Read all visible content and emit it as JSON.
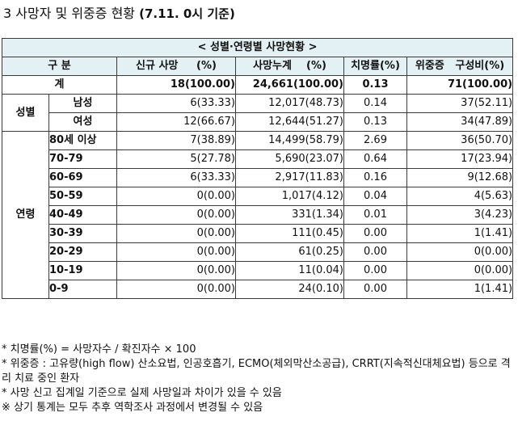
{
  "heading": {
    "number": "3",
    "title": "사망자 및 위중증 현황",
    "subtitle": "(7.11. 0시 기준)"
  },
  "table": {
    "caption": "< 성별·연령별 사망현황 >",
    "headers": {
      "category": "구 분",
      "new_deaths": "신규 사망",
      "new_deaths_unit": "(%)",
      "cumulative": "사망누계",
      "cumulative_unit": "(%)",
      "fatality": "치명률(%)",
      "critical": "위중증",
      "critical_unit": "구성비(%)"
    },
    "total": {
      "label": "계",
      "new_deaths": "18(100.00)",
      "cumulative": "24,661(100.00)",
      "fatality": "0.13",
      "critical": "71(100.00)"
    },
    "sex_group": "성별",
    "sex_rows": [
      {
        "label": "남성",
        "new_deaths": "6(33.33)",
        "cumulative": "12,017(48.73)",
        "fatality": "0.14",
        "critical": "37(52.11)"
      },
      {
        "label": "여성",
        "new_deaths": "12(66.67)",
        "cumulative": "12,644(51.27)",
        "fatality": "0.13",
        "critical": "34(47.89)"
      }
    ],
    "age_group": "연령",
    "age_rows": [
      {
        "label": "80세 이상",
        "new_deaths": "7(38.89)",
        "cumulative": "14,499(58.79)",
        "fatality": "2.69",
        "critical": "36(50.70)"
      },
      {
        "label": "70-79",
        "new_deaths": "5(27.78)",
        "cumulative": "5,690(23.07)",
        "fatality": "0.64",
        "critical": "17(23.94)"
      },
      {
        "label": "60-69",
        "new_deaths": "6(33.33)",
        "cumulative": "2,917(11.83)",
        "fatality": "0.16",
        "critical": "9(12.68)"
      },
      {
        "label": "50-59",
        "new_deaths": "0(0.00)",
        "cumulative": "1,017(4.12)",
        "fatality": "0.04",
        "critical": "4(5.63)"
      },
      {
        "label": "40-49",
        "new_deaths": "0(0.00)",
        "cumulative": "331(1.34)",
        "fatality": "0.01",
        "critical": "3(4.23)"
      },
      {
        "label": "30-39",
        "new_deaths": "0(0.00)",
        "cumulative": "111(0.45)",
        "fatality": "0.00",
        "critical": "1(1.41)"
      },
      {
        "label": "20-29",
        "new_deaths": "0(0.00)",
        "cumulative": "61(0.25)",
        "fatality": "0.00",
        "critical": "0(0.00)"
      },
      {
        "label": "10-19",
        "new_deaths": "0(0.00)",
        "cumulative": "11(0.04)",
        "fatality": "0.00",
        "critical": "0(0.00)"
      },
      {
        "label": "0-9",
        "new_deaths": "0(0.00)",
        "cumulative": "24(0.10)",
        "fatality": "0.00",
        "critical": "1(1.41)"
      }
    ]
  },
  "notes": [
    "* 치명률(%) = 사망자수 / 확진자수 × 100",
    "* 위중증 : 고유량(high flow) 산소요법, 인공호흡기, ECMO(체외막산소공급), CRRT(지속적신대체요법) 등으로 격리 치료 중인 환자",
    "* 사망 신고 집계일 기준으로 실제 사망일과 차이가 있을 수 있음",
    "※ 상기 통계는 모두 추후 역학조사 과정에서 변경될 수 있음"
  ]
}
